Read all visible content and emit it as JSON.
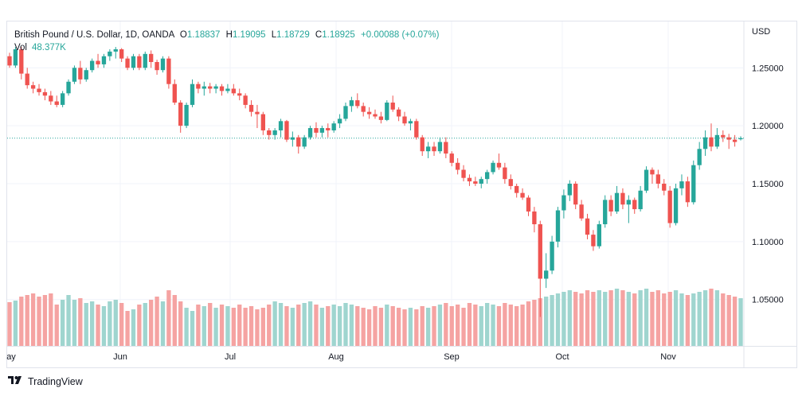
{
  "legend": {
    "symbol": "British Pound / U.S. Dollar, 1D, OANDA",
    "open_label": "O",
    "open": "1.18837",
    "high_label": "H",
    "high": "1.19095",
    "low_label": "L",
    "low": "1.18729",
    "close_label": "C",
    "close": "1.18925",
    "change": "+0.00088 (+0.07%)",
    "vol_label": "Vol",
    "vol": "48.377K"
  },
  "currency": "USD",
  "footer": {
    "brand": "TradingView"
  },
  "colors": {
    "up": "#26a69a",
    "down": "#ef5350",
    "vol_up": "#9fd5cf",
    "vol_down": "#f5a3a2",
    "grid": "#f0f3fa"
  },
  "chart_data": {
    "type": "candlestick",
    "y_ticks": [
      "1.25000",
      "1.20000",
      "1.15000",
      "1.10000",
      "1.05000"
    ],
    "ylim": [
      1.01,
      1.29
    ],
    "x_labels": [
      "ay",
      "Jun",
      "Jul",
      "Aug",
      "Sep",
      "Oct",
      "Nov"
    ],
    "last_price": 1.18925,
    "candles": [
      [
        1.26,
        1.263,
        1.25,
        1.252
      ],
      [
        1.252,
        1.268,
        1.25,
        1.266
      ],
      [
        1.266,
        1.268,
        1.24,
        1.245
      ],
      [
        1.245,
        1.25,
        1.232,
        1.235
      ],
      [
        1.235,
        1.238,
        1.228,
        1.232
      ],
      [
        1.232,
        1.236,
        1.226,
        1.229
      ],
      [
        1.229,
        1.232,
        1.222,
        1.226
      ],
      [
        1.226,
        1.23,
        1.218,
        1.221
      ],
      [
        1.221,
        1.226,
        1.216,
        1.218
      ],
      [
        1.218,
        1.23,
        1.216,
        1.228
      ],
      [
        1.228,
        1.24,
        1.226,
        1.238
      ],
      [
        1.238,
        1.252,
        1.236,
        1.25
      ],
      [
        1.25,
        1.256,
        1.236,
        1.24
      ],
      [
        1.24,
        1.25,
        1.238,
        1.248
      ],
      [
        1.248,
        1.258,
        1.246,
        1.256
      ],
      [
        1.256,
        1.262,
        1.25,
        1.253
      ],
      [
        1.253,
        1.262,
        1.25,
        1.26
      ],
      [
        1.26,
        1.266,
        1.256,
        1.264
      ],
      [
        1.264,
        1.268,
        1.258,
        1.266
      ],
      [
        1.266,
        1.267,
        1.255,
        1.258
      ],
      [
        1.258,
        1.26,
        1.248,
        1.25
      ],
      [
        1.25,
        1.262,
        1.248,
        1.26
      ],
      [
        1.26,
        1.262,
        1.248,
        1.25
      ],
      [
        1.25,
        1.264,
        1.248,
        1.262
      ],
      [
        1.262,
        1.265,
        1.25,
        1.255
      ],
      [
        1.255,
        1.257,
        1.244,
        1.248
      ],
      [
        1.248,
        1.26,
        1.246,
        1.258
      ],
      [
        1.258,
        1.26,
        1.232,
        1.236
      ],
      [
        1.236,
        1.24,
        1.218,
        1.22
      ],
      [
        1.22,
        1.222,
        1.194,
        1.2
      ],
      [
        1.2,
        1.22,
        1.198,
        1.218
      ],
      [
        1.218,
        1.24,
        1.216,
        1.236
      ],
      [
        1.236,
        1.238,
        1.228,
        1.232
      ],
      [
        1.232,
        1.238,
        1.226,
        1.234
      ],
      [
        1.234,
        1.237,
        1.228,
        1.232
      ],
      [
        1.232,
        1.236,
        1.228,
        1.234
      ],
      [
        1.234,
        1.236,
        1.226,
        1.23
      ],
      [
        1.23,
        1.236,
        1.228,
        1.232
      ],
      [
        1.232,
        1.236,
        1.226,
        1.228
      ],
      [
        1.228,
        1.232,
        1.222,
        1.226
      ],
      [
        1.226,
        1.228,
        1.215,
        1.218
      ],
      [
        1.218,
        1.222,
        1.208,
        1.212
      ],
      [
        1.212,
        1.218,
        1.198,
        1.21
      ],
      [
        1.21,
        1.212,
        1.192,
        1.196
      ],
      [
        1.196,
        1.198,
        1.188,
        1.192
      ],
      [
        1.192,
        1.198,
        1.188,
        1.196
      ],
      [
        1.196,
        1.206,
        1.19,
        1.204
      ],
      [
        1.204,
        1.205,
        1.186,
        1.188
      ],
      [
        1.188,
        1.195,
        1.182,
        1.19
      ],
      [
        1.19,
        1.192,
        1.176,
        1.182
      ],
      [
        1.182,
        1.192,
        1.18,
        1.19
      ],
      [
        1.19,
        1.2,
        1.188,
        1.198
      ],
      [
        1.198,
        1.203,
        1.19,
        1.194
      ],
      [
        1.194,
        1.2,
        1.19,
        1.198
      ],
      [
        1.198,
        1.202,
        1.19,
        1.196
      ],
      [
        1.196,
        1.204,
        1.194,
        1.202
      ],
      [
        1.202,
        1.21,
        1.198,
        1.206
      ],
      [
        1.206,
        1.22,
        1.204,
        1.217
      ],
      [
        1.217,
        1.225,
        1.212,
        1.222
      ],
      [
        1.222,
        1.228,
        1.215,
        1.217
      ],
      [
        1.217,
        1.22,
        1.208,
        1.212
      ],
      [
        1.212,
        1.216,
        1.206,
        1.21
      ],
      [
        1.21,
        1.214,
        1.206,
        1.208
      ],
      [
        1.208,
        1.212,
        1.202,
        1.205
      ],
      [
        1.205,
        1.222,
        1.204,
        1.22
      ],
      [
        1.22,
        1.226,
        1.212,
        1.214
      ],
      [
        1.214,
        1.216,
        1.204,
        1.208
      ],
      [
        1.208,
        1.212,
        1.2,
        1.202
      ],
      [
        1.202,
        1.206,
        1.196,
        1.204
      ],
      [
        1.204,
        1.206,
        1.188,
        1.19
      ],
      [
        1.19,
        1.192,
        1.174,
        1.178
      ],
      [
        1.178,
        1.186,
        1.172,
        1.182
      ],
      [
        1.182,
        1.186,
        1.174,
        1.178
      ],
      [
        1.178,
        1.19,
        1.176,
        1.186
      ],
      [
        1.186,
        1.19,
        1.172,
        1.176
      ],
      [
        1.176,
        1.178,
        1.165,
        1.168
      ],
      [
        1.168,
        1.172,
        1.158,
        1.162
      ],
      [
        1.162,
        1.166,
        1.152,
        1.155
      ],
      [
        1.155,
        1.158,
        1.148,
        1.152
      ],
      [
        1.152,
        1.156,
        1.148,
        1.15
      ],
      [
        1.15,
        1.156,
        1.146,
        1.154
      ],
      [
        1.154,
        1.162,
        1.15,
        1.16
      ],
      [
        1.16,
        1.17,
        1.158,
        1.168
      ],
      [
        1.168,
        1.176,
        1.162,
        1.164
      ],
      [
        1.164,
        1.168,
        1.15,
        1.154
      ],
      [
        1.154,
        1.158,
        1.145,
        1.148
      ],
      [
        1.148,
        1.15,
        1.138,
        1.142
      ],
      [
        1.142,
        1.146,
        1.136,
        1.138
      ],
      [
        1.138,
        1.14,
        1.122,
        1.126
      ],
      [
        1.126,
        1.13,
        1.108,
        1.115
      ],
      [
        1.115,
        1.118,
        1.035,
        1.068
      ],
      [
        1.068,
        1.09,
        1.06,
        1.075
      ],
      [
        1.075,
        1.105,
        1.072,
        1.1
      ],
      [
        1.1,
        1.13,
        1.095,
        1.127
      ],
      [
        1.127,
        1.145,
        1.12,
        1.14
      ],
      [
        1.14,
        1.153,
        1.135,
        1.15
      ],
      [
        1.15,
        1.152,
        1.128,
        1.132
      ],
      [
        1.132,
        1.136,
        1.118,
        1.12
      ],
      [
        1.12,
        1.124,
        1.102,
        1.106
      ],
      [
        1.106,
        1.11,
        1.092,
        1.096
      ],
      [
        1.096,
        1.118,
        1.094,
        1.115
      ],
      [
        1.115,
        1.14,
        1.112,
        1.136
      ],
      [
        1.136,
        1.14,
        1.122,
        1.126
      ],
      [
        1.126,
        1.148,
        1.124,
        1.142
      ],
      [
        1.142,
        1.146,
        1.128,
        1.132
      ],
      [
        1.132,
        1.14,
        1.116,
        1.136
      ],
      [
        1.136,
        1.138,
        1.124,
        1.128
      ],
      [
        1.128,
        1.148,
        1.126,
        1.144
      ],
      [
        1.144,
        1.165,
        1.142,
        1.162
      ],
      [
        1.162,
        1.164,
        1.15,
        1.158
      ],
      [
        1.158,
        1.162,
        1.146,
        1.15
      ],
      [
        1.15,
        1.154,
        1.14,
        1.144
      ],
      [
        1.144,
        1.148,
        1.112,
        1.116
      ],
      [
        1.116,
        1.15,
        1.114,
        1.146
      ],
      [
        1.146,
        1.158,
        1.14,
        1.152
      ],
      [
        1.152,
        1.156,
        1.13,
        1.134
      ],
      [
        1.134,
        1.17,
        1.132,
        1.166
      ],
      [
        1.166,
        1.186,
        1.162,
        1.18
      ],
      [
        1.18,
        1.196,
        1.174,
        1.19
      ],
      [
        1.19,
        1.202,
        1.178,
        1.182
      ],
      [
        1.182,
        1.198,
        1.18,
        1.192
      ],
      [
        1.192,
        1.196,
        1.186,
        1.19
      ],
      [
        1.19,
        1.193,
        1.18,
        1.188
      ],
      [
        1.188,
        1.192,
        1.182,
        1.186
      ],
      [
        1.18837,
        1.19095,
        1.18729,
        1.18925
      ]
    ],
    "volumes": [
      55,
      57,
      62,
      64,
      66,
      62,
      64,
      66,
      52,
      58,
      64,
      58,
      60,
      54,
      56,
      52,
      50,
      56,
      58,
      54,
      44,
      46,
      52,
      54,
      58,
      62,
      56,
      70,
      64,
      56,
      48,
      44,
      52,
      50,
      54,
      48,
      52,
      50,
      48,
      52,
      48,
      50,
      46,
      48,
      52,
      56,
      54,
      50,
      48,
      52,
      54,
      56,
      52,
      48,
      50,
      52,
      50,
      54,
      52,
      50,
      48,
      46,
      50,
      48,
      52,
      50,
      48,
      46,
      48,
      46,
      50,
      48,
      50,
      52,
      54,
      50,
      52,
      48,
      54,
      52,
      50,
      54,
      52,
      50,
      54,
      52,
      50,
      52,
      56,
      58,
      60,
      62,
      64,
      66,
      68,
      70,
      68,
      66,
      70,
      68,
      70,
      68,
      70,
      72,
      70,
      68,
      66,
      70,
      72,
      68,
      70,
      66,
      68,
      70,
      66,
      64,
      66,
      68,
      70,
      72,
      70,
      66,
      64,
      62,
      60
    ],
    "volume_up": [
      false,
      true,
      false,
      false,
      false,
      false,
      false,
      false,
      false,
      true,
      true,
      true,
      false,
      true,
      true,
      false,
      true,
      true,
      true,
      false,
      false,
      true,
      false,
      true,
      false,
      false,
      true,
      false,
      false,
      false,
      true,
      true,
      false,
      true,
      false,
      true,
      false,
      true,
      false,
      false,
      false,
      false,
      false,
      false,
      false,
      true,
      true,
      false,
      true,
      false,
      true,
      true,
      false,
      true,
      false,
      true,
      true,
      true,
      true,
      false,
      false,
      false,
      false,
      false,
      true,
      false,
      false,
      false,
      true,
      false,
      false,
      true,
      false,
      true,
      false,
      false,
      false,
      false,
      false,
      false,
      true,
      true,
      true,
      false,
      false,
      false,
      false,
      false,
      false,
      false,
      false,
      true,
      true,
      true,
      true,
      true,
      false,
      false,
      false,
      false,
      true,
      true,
      false,
      true,
      false,
      true,
      false,
      true,
      true,
      false,
      false,
      false,
      false,
      true,
      true,
      false,
      true,
      true,
      true,
      false,
      true,
      false,
      false,
      false,
      true
    ]
  }
}
